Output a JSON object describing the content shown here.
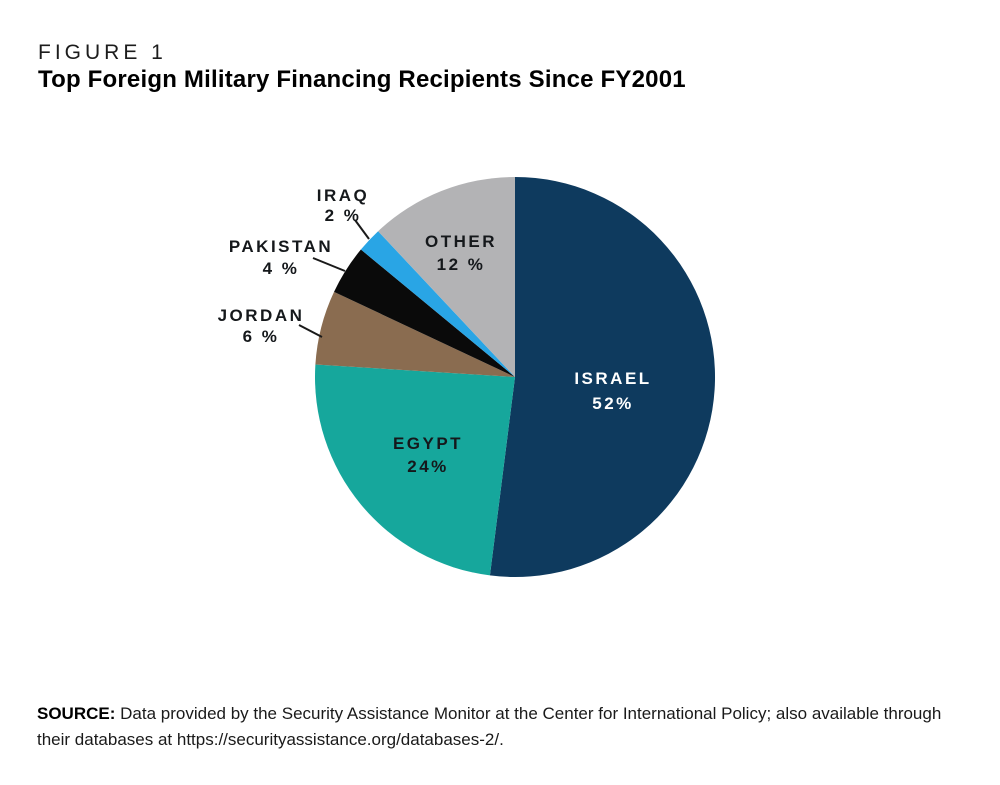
{
  "figure": {
    "kicker": "FIGURE 1",
    "title": "Top Foreign Military Financing Recipients Since FY2001"
  },
  "chart_data": {
    "type": "pie",
    "title": "Top Foreign Military Financing Recipients Since FY2001",
    "start_angle": "12 o'clock",
    "direction": "clockwise",
    "slices": [
      {
        "label": "ISRAEL",
        "value": 52,
        "value_label": "52%",
        "color": "#0e3a5e",
        "label_color": "#ffffff",
        "label_placement": "inside"
      },
      {
        "label": "EGYPT",
        "value": 24,
        "value_label": "24%",
        "color": "#16a79c",
        "label_color": "#15181b",
        "label_placement": "inside"
      },
      {
        "label": "JORDAN",
        "value": 6,
        "value_label": "6 %",
        "color": "#8a6c50",
        "label_color": "#15181b",
        "label_placement": "outside"
      },
      {
        "label": "PAKISTAN",
        "value": 4,
        "value_label": "4 %",
        "color": "#0a0a0a",
        "label_color": "#15181b",
        "label_placement": "outside"
      },
      {
        "label": "IRAQ",
        "value": 2,
        "value_label": "2 %",
        "color": "#29a5e5",
        "label_color": "#15181b",
        "label_placement": "outside"
      },
      {
        "label": "OTHER",
        "value": 12,
        "value_label": "12 %",
        "color": "#b3b3b5",
        "label_color": "#15181b",
        "label_placement": "inside"
      }
    ]
  },
  "source": {
    "label": "SOURCE:",
    "text": " Data provided by the Security Assistance Monitor at the Center for International Policy; also available through their databases at https://securityassistance.org/databases-2/."
  }
}
